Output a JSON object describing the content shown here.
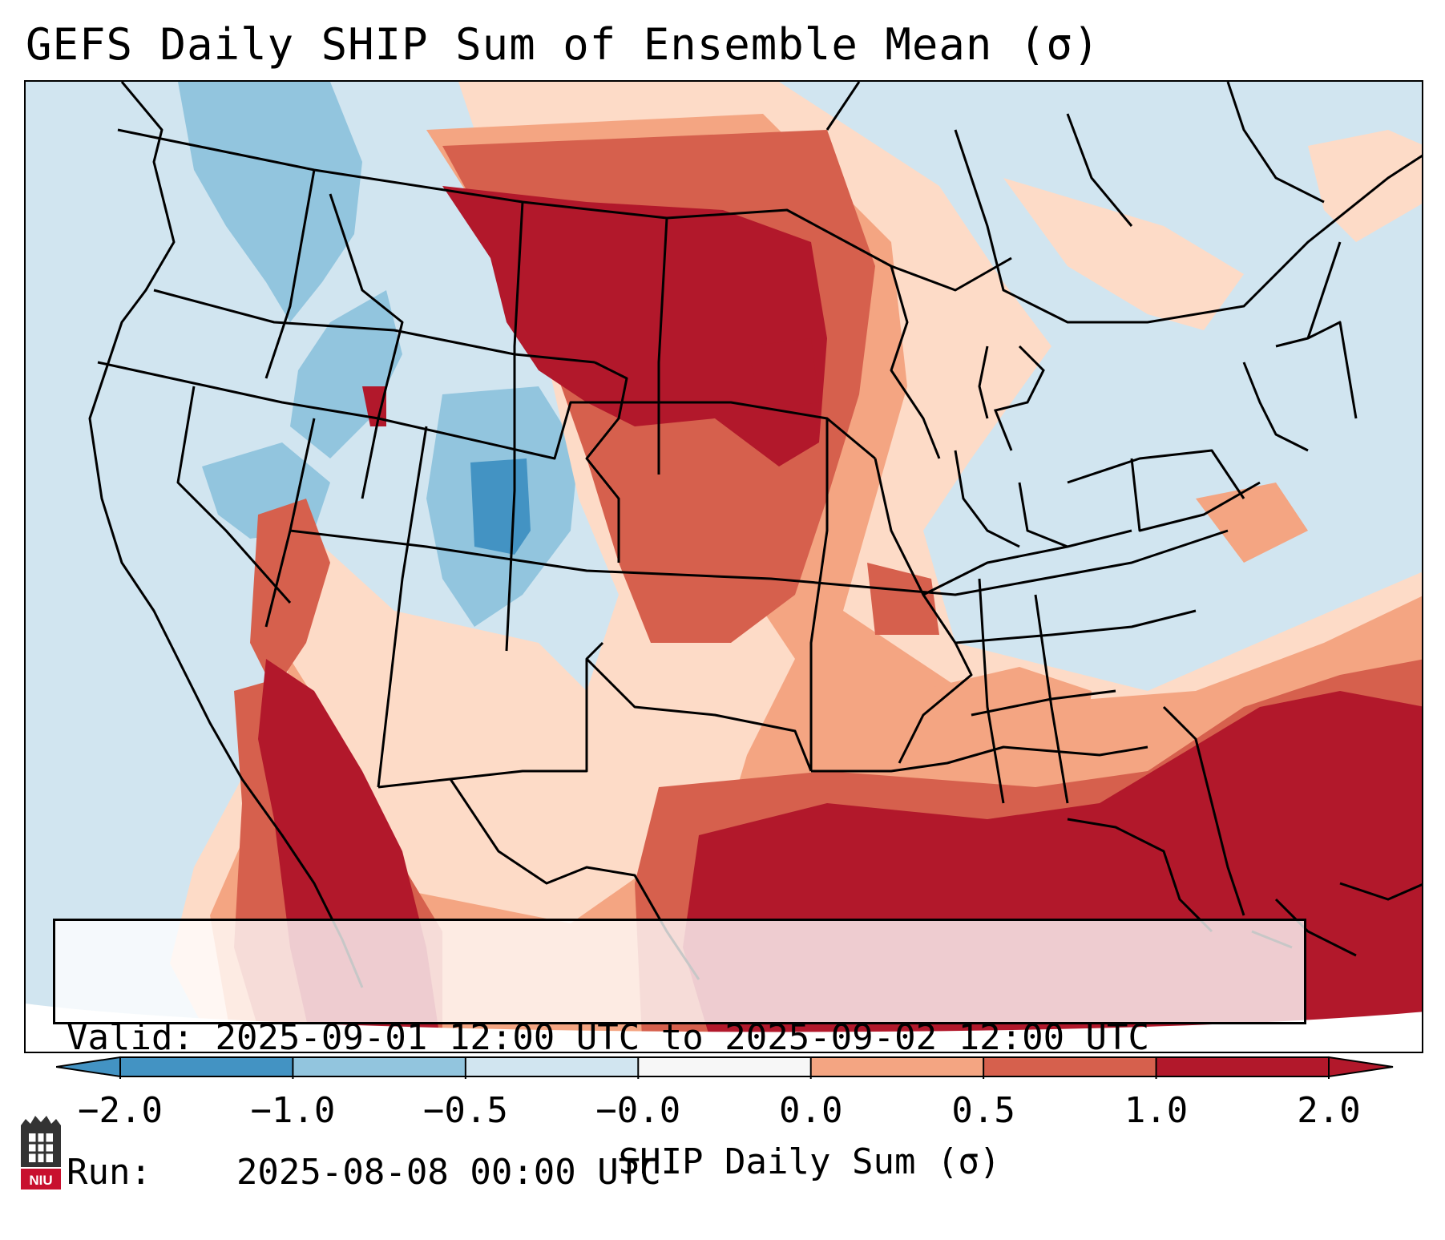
{
  "title": "GEFS Daily SHIP Sum of Ensemble Mean (σ)",
  "info": {
    "valid_label": "Valid:",
    "valid_value": "2025-09-01 12:00 UTC to 2025-09-02 12:00 UTC",
    "run_label": "Run:",
    "run_value": "2025-08-08 00:00 UTC"
  },
  "colorbar": {
    "label": "SHIP Daily Sum (σ)",
    "ticks": [
      "−2.0",
      "−1.0",
      "−0.5",
      "−0.0",
      "0.0",
      "0.5",
      "1.0",
      "2.0"
    ],
    "colors": [
      "#4393c3",
      "#92c5de",
      "#d1e5f0",
      "#f7f7f7",
      "#fddbc7",
      "#f4a582",
      "#d6604d",
      "#b2182b"
    ],
    "extend": "both"
  },
  "logo": {
    "name": "NIU",
    "text": "NIU",
    "color": "#c8102e"
  }
}
